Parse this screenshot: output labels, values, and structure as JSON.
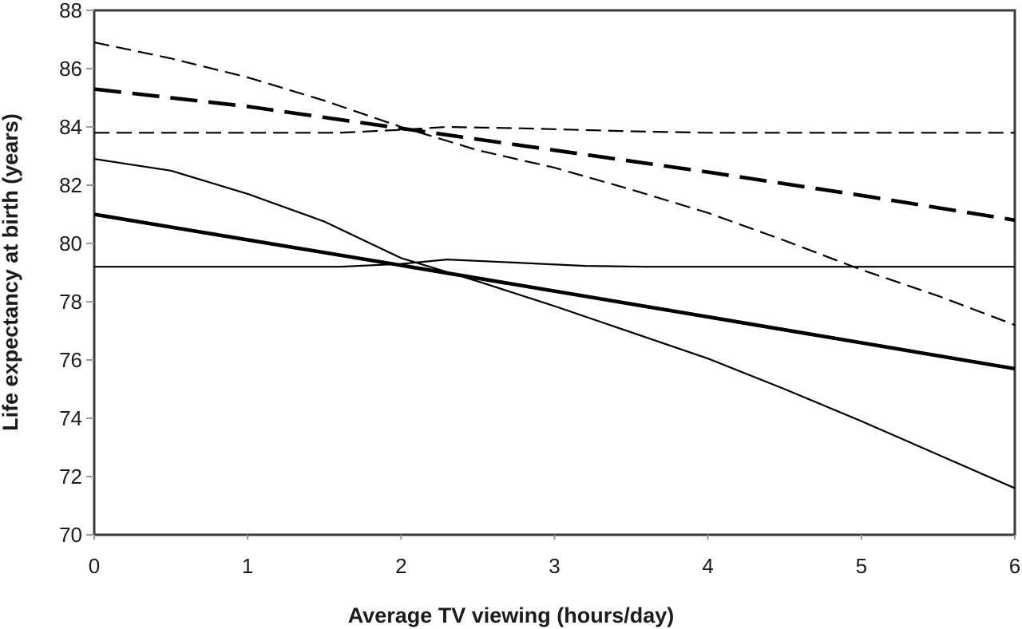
{
  "figure": {
    "xlabel": "Average TV viewing (hours/day)",
    "ylabel": "Life expectancy at birth (years)",
    "colors": {
      "line": "#000000",
      "axis": "#3a3a3a",
      "tick": "#9a9a9a",
      "text": "#1c1c1c",
      "background": "#ffffff"
    }
  },
  "chart_data": {
    "type": "line",
    "title": "",
    "xlabel": "Average TV viewing (hours/day)",
    "ylabel": "Life expectancy at birth (years)",
    "xlim": [
      0,
      6
    ],
    "ylim": [
      70,
      88
    ],
    "x_ticks": [
      0,
      1,
      2,
      3,
      4,
      5,
      6
    ],
    "y_ticks": [
      88,
      86,
      84,
      82,
      80,
      78,
      76,
      74,
      72,
      70
    ],
    "grid": false,
    "legend": "none",
    "frame": "full-box",
    "anchor_note": "all three dashed lines converge near x=2 at ~83.9; all three solid lines converge near x=2 at ~79.3",
    "series": [
      {
        "id": "dashed-flat",
        "label": "thin dashed near-horizontal line (reference ~83.8 years)",
        "line_style": "dashed",
        "weight": "thin",
        "points": [
          [
            0,
            83.8
          ],
          [
            1.6,
            83.8
          ],
          [
            2,
            83.9
          ],
          [
            2.3,
            84.0
          ],
          [
            2.8,
            83.95
          ],
          [
            3.5,
            83.85
          ],
          [
            4,
            83.8
          ],
          [
            6,
            83.8
          ]
        ]
      },
      {
        "id": "solid-flat",
        "label": "thin solid near-horizontal line (reference ~79.2 years)",
        "line_style": "solid",
        "weight": "thin",
        "points": [
          [
            0,
            79.2
          ],
          [
            1.6,
            79.2
          ],
          [
            2,
            79.3
          ],
          [
            2.3,
            79.45
          ],
          [
            2.8,
            79.33
          ],
          [
            3.2,
            79.23
          ],
          [
            3.6,
            79.2
          ],
          [
            6,
            79.2
          ]
        ]
      },
      {
        "id": "dashed-upper",
        "label": "thin dashed steep line: 86.9 at 0 h/day to 77.2 at 6 h/day",
        "line_style": "dashed",
        "weight": "thin",
        "points": [
          [
            0,
            86.9
          ],
          [
            0.5,
            86.35
          ],
          [
            1,
            85.7
          ],
          [
            1.5,
            84.9
          ],
          [
            2,
            84.0
          ],
          [
            2.5,
            83.2
          ],
          [
            3,
            82.6
          ],
          [
            3.5,
            81.85
          ],
          [
            4,
            81.05
          ],
          [
            4.5,
            80.1
          ],
          [
            5,
            79.1
          ],
          [
            5.5,
            78.2
          ],
          [
            6,
            77.2
          ]
        ]
      },
      {
        "id": "solid-upper",
        "label": "thin solid steep line: 82.9 at 0 h/day to 71.6 at 6 h/day",
        "line_style": "solid",
        "weight": "thin",
        "points": [
          [
            0,
            82.9
          ],
          [
            0.5,
            82.5
          ],
          [
            1,
            81.7
          ],
          [
            1.5,
            80.75
          ],
          [
            2,
            79.5
          ],
          [
            2.5,
            78.7
          ],
          [
            3,
            77.85
          ],
          [
            3.5,
            76.95
          ],
          [
            4,
            76.05
          ],
          [
            4.5,
            75.0
          ],
          [
            5,
            73.9
          ],
          [
            5.5,
            72.75
          ],
          [
            6,
            71.6
          ]
        ]
      },
      {
        "id": "dashed-central",
        "label": "thick dashed central line: 85.3 at 0 h/day to 80.8 at 6 h/day",
        "line_style": "dashed",
        "weight": "thick",
        "points": [
          [
            0,
            85.3
          ],
          [
            1,
            84.7
          ],
          [
            2,
            83.95
          ],
          [
            3,
            83.2
          ],
          [
            4,
            82.45
          ],
          [
            5,
            81.65
          ],
          [
            6,
            80.8
          ]
        ]
      },
      {
        "id": "solid-central",
        "label": "thick solid central line: 81.0 at 0 h/day to 75.7 at 6 h/day",
        "line_style": "solid",
        "weight": "thick",
        "points": [
          [
            0,
            81.0
          ],
          [
            2,
            79.25
          ],
          [
            4,
            77.48
          ],
          [
            6,
            75.7
          ]
        ]
      }
    ]
  }
}
